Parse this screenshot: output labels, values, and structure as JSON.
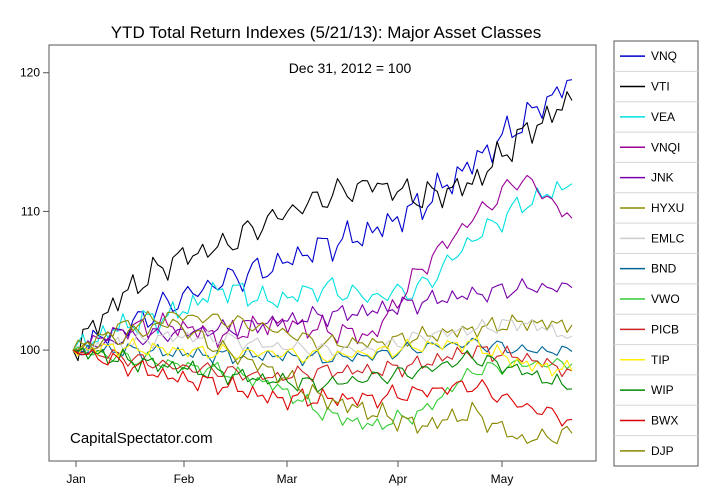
{
  "chart_data": {
    "type": "line",
    "title": "YTD Total Return Indexes (5/21/13): Major Asset Classes",
    "annotation": "Dec 31, 2012 = 100",
    "watermark": "CapitalSpectator.com",
    "xlabel": "",
    "ylabel": "",
    "x_ticks": [
      "Jan",
      "Feb",
      "Mar",
      "Apr",
      "May"
    ],
    "y_ticks": [
      100,
      110,
      120
    ],
    "ylim": [
      92,
      122
    ],
    "grid": false,
    "legend_position": "right",
    "x_points": [
      "Dec 31",
      "Jan 15",
      "Feb 1",
      "Feb 15",
      "Mar 1",
      "Mar 15",
      "Apr 1",
      "Apr 15",
      "May 1",
      "May 15",
      "May 21"
    ],
    "series": [
      {
        "name": "VNQ",
        "color": "#0000cc",
        "values": [
          100,
          101.5,
          103.5,
          105.0,
          106.0,
          107.5,
          108.5,
          110.5,
          113.5,
          116.5,
          119.5
        ]
      },
      {
        "name": "VTI",
        "color": "#000000",
        "values": [
          100,
          104.0,
          106.5,
          107.5,
          109.5,
          111.0,
          112.0,
          111.0,
          112.0,
          115.5,
          118.0
        ]
      },
      {
        "name": "VEA",
        "color": "#00e0e0",
        "values": [
          100,
          101.8,
          102.5,
          104.5,
          103.5,
          104.5,
          103.8,
          104.5,
          108.0,
          110.5,
          112.0
        ]
      },
      {
        "name": "VNQI",
        "color": "#990099",
        "values": [
          100,
          101.5,
          101.8,
          101.0,
          102.0,
          101.5,
          101.0,
          106.0,
          109.5,
          112.5,
          109.5
        ]
      },
      {
        "name": "JNK",
        "color": "#7700aa",
        "values": [
          100,
          100.8,
          101.2,
          101.5,
          102.0,
          102.5,
          102.8,
          103.5,
          104.0,
          104.5,
          104.5
        ]
      },
      {
        "name": "HYXU",
        "color": "#8b8b00",
        "values": [
          100,
          101.8,
          102.5,
          102.2,
          101.5,
          100.5,
          100.5,
          101.0,
          101.5,
          102.0,
          101.8
        ]
      },
      {
        "name": "EMLC",
        "color": "#cccccc",
        "values": [
          100,
          100.5,
          101.0,
          100.8,
          100.3,
          100.0,
          100.0,
          101.0,
          101.5,
          102.0,
          101.0
        ]
      },
      {
        "name": "BND",
        "color": "#006699",
        "values": [
          100,
          100.0,
          99.8,
          99.6,
          99.6,
          99.4,
          99.6,
          100.2,
          100.5,
          100.0,
          99.9
        ]
      },
      {
        "name": "VWO",
        "color": "#33cc33",
        "values": [
          100,
          99.5,
          99.0,
          98.5,
          97.5,
          95.5,
          94.5,
          95.5,
          98.5,
          99.0,
          99.0
        ]
      },
      {
        "name": "PICB",
        "color": "#cc2222",
        "values": [
          100,
          99.5,
          98.8,
          98.5,
          98.0,
          98.5,
          98.5,
          99.0,
          100.0,
          99.5,
          98.5
        ]
      },
      {
        "name": "TIP",
        "color": "#ffee00",
        "values": [
          100,
          100.2,
          100.0,
          99.8,
          99.8,
          99.5,
          99.8,
          100.3,
          100.5,
          99.0,
          98.5
        ]
      },
      {
        "name": "WIP",
        "color": "#008800",
        "values": [
          100,
          99.3,
          98.8,
          98.3,
          97.8,
          97.5,
          98.0,
          98.5,
          99.5,
          98.5,
          97.2
        ]
      },
      {
        "name": "BWX",
        "color": "#dd0000",
        "values": [
          100,
          99.0,
          98.0,
          97.5,
          96.5,
          96.5,
          96.5,
          97.0,
          97.5,
          96.0,
          95.0
        ]
      },
      {
        "name": "DJP",
        "color": "#888800",
        "values": [
          100,
          101.0,
          102.0,
          100.0,
          98.5,
          96.5,
          95.5,
          94.5,
          95.5,
          93.5,
          94.0
        ]
      }
    ]
  }
}
